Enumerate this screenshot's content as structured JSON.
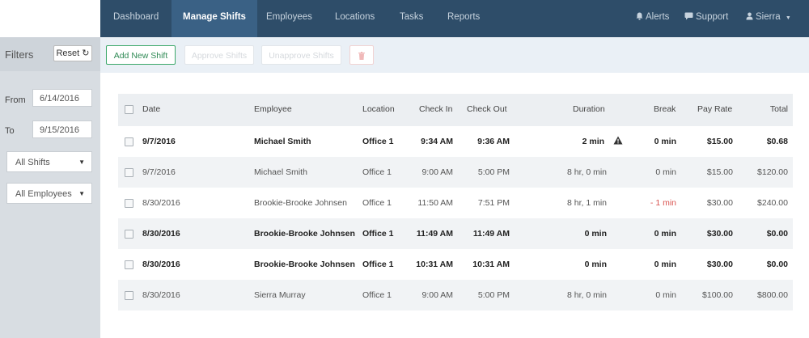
{
  "nav": {
    "items": [
      "Dashboard",
      "Manage Shifts",
      "Employees",
      "Locations",
      "Tasks",
      "Reports"
    ],
    "active": "Manage Shifts",
    "alerts_label": "Alerts",
    "support_label": "Support",
    "user_label": "Sierra"
  },
  "sidebar": {
    "title": "Filters",
    "reset_label": "Reset",
    "from_label": "From",
    "from_value": "6/14/2016",
    "to_label": "To",
    "to_value": "9/15/2016",
    "shifts_select": "All Shifts",
    "employees_select": "All Employees"
  },
  "toolbar": {
    "add_label": "Add New Shift",
    "approve_label": "Approve Shifts",
    "unapprove_label": "Unapprove Shifts"
  },
  "table": {
    "headers": {
      "date": "Date",
      "employee": "Employee",
      "location": "Location",
      "check_in": "Check In",
      "check_out": "Check Out",
      "duration": "Duration",
      "break": "Break",
      "pay_rate": "Pay Rate",
      "total": "Total"
    },
    "rows": [
      {
        "date": "9/7/2016",
        "employee": "Michael Smith",
        "location": "Office 1",
        "check_in": "9:34 AM",
        "check_out": "9:36 AM",
        "duration": "2 min",
        "break": "0 min",
        "pay_rate": "$15.00",
        "total": "$0.68"
      },
      {
        "date": "9/7/2016",
        "employee": "Michael Smith",
        "location": "Office 1",
        "check_in": "9:00 AM",
        "check_out": "5:00 PM",
        "duration": "8 hr, 0 min",
        "break": "0 min",
        "pay_rate": "$15.00",
        "total": "$120.00"
      },
      {
        "date": "8/30/2016",
        "employee": "Brookie-Brooke Johnsen",
        "location": "Office 1",
        "check_in": "11:50 AM",
        "check_out": "7:51 PM",
        "duration": "8 hr, 1 min",
        "break": "- 1 min",
        "pay_rate": "$30.00",
        "total": "$240.00"
      },
      {
        "date": "8/30/2016",
        "employee": "Brookie-Brooke Johnsen",
        "location": "Office 1",
        "check_in": "11:49 AM",
        "check_out": "11:49 AM",
        "duration": "0 min",
        "break": "0 min",
        "pay_rate": "$30.00",
        "total": "$0.00"
      },
      {
        "date": "8/30/2016",
        "employee": "Brookie-Brooke Johnsen",
        "location": "Office 1",
        "check_in": "10:31 AM",
        "check_out": "10:31 AM",
        "duration": "0 min",
        "break": "0 min",
        "pay_rate": "$30.00",
        "total": "$0.00"
      },
      {
        "date": "8/30/2016",
        "employee": "Sierra Murray",
        "location": "Office 1",
        "check_in": "9:00 AM",
        "check_out": "5:00 PM",
        "duration": "8 hr, 0 min",
        "break": "0 min",
        "pay_rate": "$100.00",
        "total": "$800.00"
      }
    ]
  },
  "colors": {
    "nav_bg": "#2e4d69",
    "nav_active": "#3a6185",
    "add_button": "#3ca86a",
    "negative": "#d9534f"
  },
  "icons": {
    "alerts": "bell-icon",
    "support": "chat-icon",
    "user": "user-icon",
    "reset": "refresh-icon",
    "trash": "trash-icon",
    "warning": "warning-icon"
  }
}
